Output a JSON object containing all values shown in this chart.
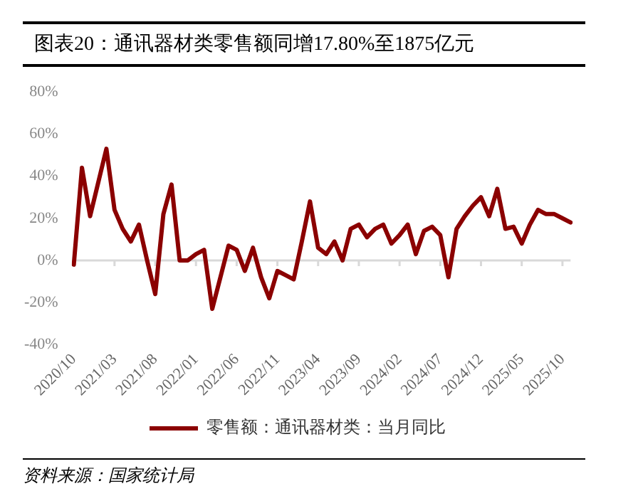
{
  "chart_data": {
    "type": "line",
    "title": "图表20：通讯器材类零售额同增17.80%至1875亿元",
    "categories": [
      "2020/10",
      null,
      null,
      null,
      null,
      "2021/03",
      null,
      null,
      null,
      null,
      "2021/08",
      null,
      null,
      null,
      null,
      "2022/01",
      null,
      null,
      null,
      null,
      "2022/06",
      null,
      null,
      null,
      null,
      "2022/11",
      null,
      null,
      null,
      null,
      "2023/04",
      null,
      null,
      null,
      null,
      "2023/09",
      null,
      null,
      null,
      null,
      "2024/02",
      null,
      null,
      null,
      null,
      "2024/07",
      null,
      null,
      null,
      null,
      "2024/12",
      null,
      null,
      null,
      null,
      "2025/05",
      null,
      null,
      null,
      null,
      "2025/10",
      null
    ],
    "series": [
      {
        "name": "零售额：通讯器材类：当月同比",
        "color": "#8b0000",
        "values": [
          -2,
          44,
          21,
          37,
          53,
          24,
          15,
          9,
          17,
          0,
          -16,
          22,
          36,
          0,
          0,
          3,
          5,
          -23,
          -8,
          7,
          5,
          -5,
          6,
          -8,
          -18,
          -5,
          -7,
          -9,
          9,
          28,
          6,
          3,
          9,
          0,
          15,
          17,
          11,
          15,
          17,
          8,
          12,
          17,
          3,
          14,
          16,
          12,
          -8,
          15,
          21,
          26,
          30,
          21,
          34,
          15,
          16,
          8,
          17,
          24,
          22,
          22,
          20,
          18
        ]
      }
    ],
    "ylim": [
      -40,
      80
    ],
    "yticks": [
      {
        "value": -40,
        "label": "-40%"
      },
      {
        "value": -20,
        "label": "-20%"
      },
      {
        "value": 0,
        "label": "0%"
      },
      {
        "value": 20,
        "label": "20%"
      },
      {
        "value": 40,
        "label": "40%"
      },
      {
        "value": 60,
        "label": "60%"
      },
      {
        "value": 80,
        "label": "80%"
      }
    ],
    "ref_lines": [
      {
        "axis": "y",
        "value": 0,
        "color": "#d9d9d9"
      }
    ],
    "grid": false,
    "legend": "bottom",
    "marker": "none",
    "line_style": "solid",
    "annotations": [
      "资料来源：国家统计局"
    ]
  }
}
